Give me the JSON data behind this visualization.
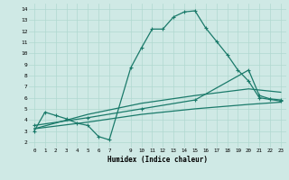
{
  "xlabel": "Humidex (Indice chaleur)",
  "bg_color": "#cfe9e5",
  "grid_color": "#b0d8d0",
  "line_color": "#1a7a6a",
  "xlim": [
    -0.5,
    23.5
  ],
  "ylim": [
    1.5,
    14.5
  ],
  "xticks": [
    0,
    1,
    2,
    3,
    4,
    5,
    6,
    7,
    9,
    10,
    11,
    12,
    13,
    14,
    15,
    16,
    17,
    18,
    19,
    20,
    21,
    22,
    23
  ],
  "yticks": [
    2,
    3,
    4,
    5,
    6,
    7,
    8,
    9,
    10,
    11,
    12,
    13,
    14
  ],
  "line1_x": [
    0,
    1,
    2,
    3,
    4,
    5,
    6,
    7,
    9,
    10,
    11,
    12,
    13,
    14,
    15,
    16,
    17,
    18,
    19,
    20,
    21,
    22,
    23
  ],
  "line1_y": [
    3.0,
    4.7,
    4.4,
    4.1,
    3.7,
    3.5,
    2.5,
    2.2,
    8.7,
    10.5,
    12.2,
    12.2,
    13.3,
    13.75,
    13.85,
    12.3,
    11.1,
    9.9,
    8.5,
    7.5,
    6.0,
    5.85,
    5.7
  ],
  "line2_x": [
    0,
    5,
    10,
    15,
    20,
    23
  ],
  "line2_y": [
    3.2,
    4.5,
    5.5,
    6.2,
    6.8,
    6.5
  ],
  "line3_x": [
    0,
    5,
    10,
    15,
    20,
    21,
    22,
    23
  ],
  "line3_y": [
    3.5,
    4.2,
    5.0,
    5.8,
    8.5,
    6.2,
    5.9,
    5.8
  ],
  "line4_x": [
    0,
    5,
    10,
    15,
    20,
    23
  ],
  "line4_y": [
    3.2,
    3.8,
    4.5,
    5.0,
    5.4,
    5.6
  ]
}
